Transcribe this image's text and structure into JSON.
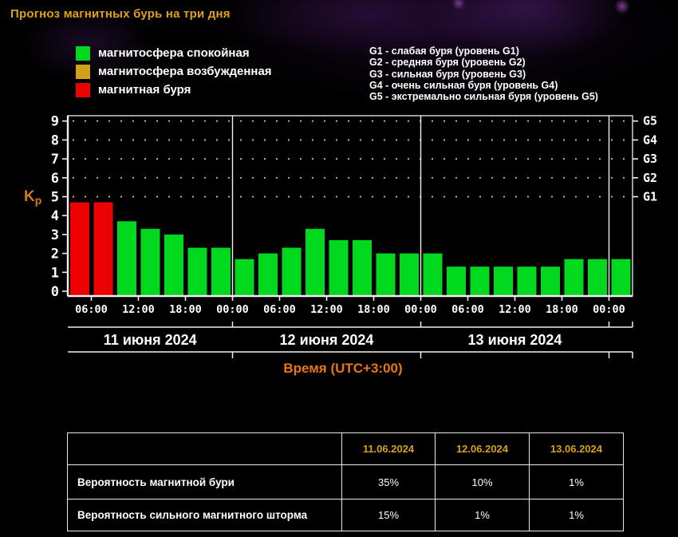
{
  "title": "Прогноз магнитных бурь на три дня",
  "legend": {
    "items": [
      {
        "label": "магнитосфера спокойная",
        "state": "quiet"
      },
      {
        "label": "магнитосфера возбужденная",
        "state": "excited"
      },
      {
        "label": "магнитная буря",
        "state": "storm"
      }
    ]
  },
  "g_levels": [
    "G1 - слабая буря (уровень G1)",
    "G2 - средняя буря (уровень G2)",
    "G3 - сильная буря (уровень G3)",
    "G4 - очень сильная буря (уровень G4)",
    "G5 - экстремально сильная буря (уровень G5)"
  ],
  "chart_data": {
    "type": "bar",
    "title": "",
    "ylabel_main": "K",
    "ylabel_sub": "р",
    "xlabel": "Время (UTC+3:00)",
    "ylim": [
      0,
      9.3
    ],
    "yticks": [
      0,
      1,
      2,
      3,
      4,
      5,
      6,
      7,
      8,
      9
    ],
    "right_axis": [
      {
        "kp": 5,
        "label": "G1"
      },
      {
        "kp": 6,
        "label": "G2"
      },
      {
        "kp": 7,
        "label": "G3"
      },
      {
        "kp": 8,
        "label": "G4"
      },
      {
        "kp": 9,
        "label": "G5"
      }
    ],
    "grid_dotted_at": [
      5,
      6,
      7,
      8,
      9
    ],
    "time_axis": {
      "start_offset_hours": 3,
      "total_hours": 72,
      "bar_hours": 3,
      "ticks": [
        {
          "h": 3,
          "label": "06:00"
        },
        {
          "h": 9,
          "label": "12:00"
        },
        {
          "h": 15,
          "label": "18:00"
        },
        {
          "h": 21,
          "label": "00:00"
        },
        {
          "h": 27,
          "label": "06:00"
        },
        {
          "h": 33,
          "label": "12:00"
        },
        {
          "h": 39,
          "label": "18:00"
        },
        {
          "h": 45,
          "label": "00:00"
        },
        {
          "h": 51,
          "label": "06:00"
        },
        {
          "h": 57,
          "label": "12:00"
        },
        {
          "h": 63,
          "label": "18:00"
        },
        {
          "h": 69,
          "label": "00:00"
        }
      ],
      "day_boundaries": [
        21,
        45,
        69
      ]
    },
    "days": [
      {
        "label": "11 июня 2024",
        "span_hours": [
          0,
          21
        ]
      },
      {
        "label": "12 июня 2024",
        "span_hours": [
          21,
          45
        ]
      },
      {
        "label": "13 июня 2024",
        "span_hours": [
          45,
          69
        ]
      }
    ],
    "bars": [
      {
        "kp": 4.7,
        "state": "storm"
      },
      {
        "kp": 4.7,
        "state": "storm"
      },
      {
        "kp": 3.7,
        "state": "quiet"
      },
      {
        "kp": 3.3,
        "state": "quiet"
      },
      {
        "kp": 3.0,
        "state": "quiet"
      },
      {
        "kp": 2.3,
        "state": "quiet"
      },
      {
        "kp": 2.3,
        "state": "quiet"
      },
      {
        "kp": 1.7,
        "state": "quiet"
      },
      {
        "kp": 2.0,
        "state": "quiet"
      },
      {
        "kp": 2.3,
        "state": "quiet"
      },
      {
        "kp": 3.3,
        "state": "quiet"
      },
      {
        "kp": 2.7,
        "state": "quiet"
      },
      {
        "kp": 2.7,
        "state": "quiet"
      },
      {
        "kp": 2.0,
        "state": "quiet"
      },
      {
        "kp": 2.0,
        "state": "quiet"
      },
      {
        "kp": 2.0,
        "state": "quiet"
      },
      {
        "kp": 1.3,
        "state": "quiet"
      },
      {
        "kp": 1.3,
        "state": "quiet"
      },
      {
        "kp": 1.3,
        "state": "quiet"
      },
      {
        "kp": 1.3,
        "state": "quiet"
      },
      {
        "kp": 1.3,
        "state": "quiet"
      },
      {
        "kp": 1.7,
        "state": "quiet"
      },
      {
        "kp": 1.7,
        "state": "quiet"
      },
      {
        "kp": 1.7,
        "state": "quiet"
      }
    ],
    "palette": {
      "quiet": "#00d91e",
      "excited": "#d2a019",
      "storm": "#ee0101"
    },
    "legend_position": "top"
  },
  "table": {
    "columns": [
      "11.06.2024",
      "12.06.2024",
      "13.06.2024"
    ],
    "rows": [
      {
        "label": "Вероятность магнитной бури",
        "values": [
          "35%",
          "10%",
          "1%"
        ]
      },
      {
        "label": "Вероятность сильного магнитного шторма",
        "values": [
          "15%",
          "1%",
          "1%"
        ]
      }
    ]
  },
  "colors": {
    "background": "#000000",
    "title_text": "#dda312",
    "axis_text": "#ffffff",
    "axis_line": "#efefef",
    "grid_dot": "#bdbdbd",
    "kp_label": "#cf7c1f",
    "xlabel_text": "#e8770f",
    "date_text": "#ffffff",
    "table_date_text": "#d8a01c",
    "table_border": "#e9e9e9"
  }
}
